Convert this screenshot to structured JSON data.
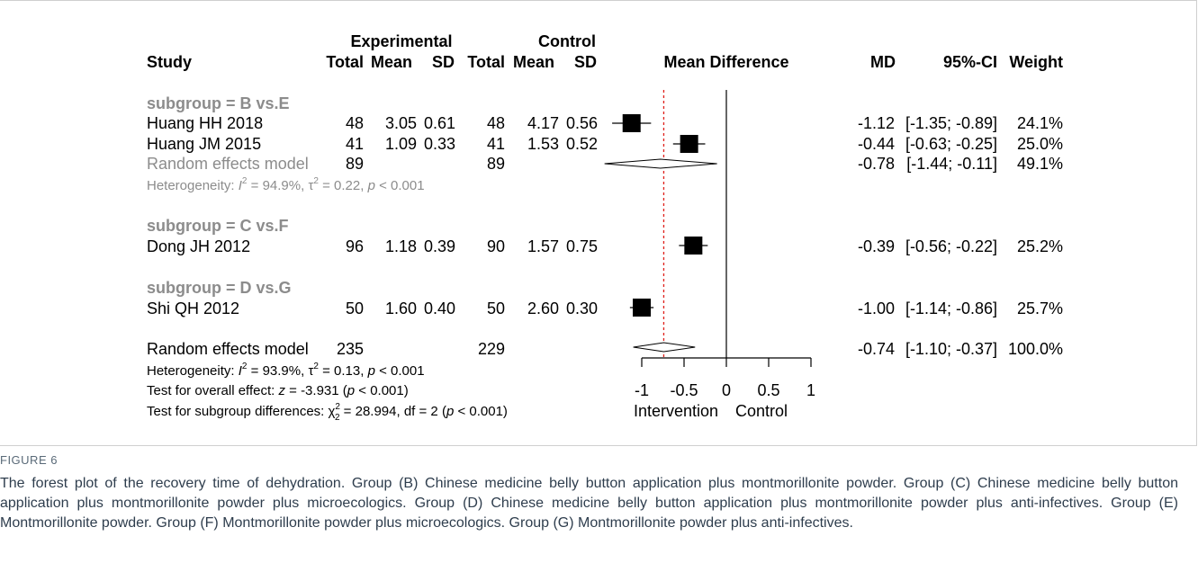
{
  "headers": {
    "study": "Study",
    "experimental": "Experimental",
    "control": "Control",
    "total": "Total",
    "mean": "Mean",
    "sd": "SD",
    "mean_difference": "Mean Difference",
    "md": "MD",
    "ci": "95%-CI",
    "weight": "Weight"
  },
  "axis": {
    "ticks": [
      -1,
      -0.5,
      0,
      0.5,
      1
    ],
    "tick_labels": [
      "-1",
      "-0.5",
      "0",
      "0.5",
      "1"
    ],
    "xlim": [
      -1,
      1
    ],
    "left_label": "Intervention",
    "right_label": "Control",
    "overall_reference": -0.74
  },
  "overall_text": {
    "model_label": "Random effects model",
    "total_e": "235",
    "total_c": "229",
    "md": "-0.74",
    "ci": "[-1.10; -0.37]",
    "weight": "100.0%",
    "heterogeneity": {
      "prefix": "Heterogeneity: ",
      "i2_value": " = 93.9%, ",
      "tau2_value": " = 0.13, ",
      "p_value": " < 0.001"
    },
    "overall_effect": {
      "prefix": "Test for overall effect: ",
      "z_value": " = -3.931 (",
      "p_value": " < 0.001)"
    },
    "subgroup_diff": {
      "prefix": "Test for subgroup differences: ",
      "chi_value": " = 28.994, df = 2 (",
      "p_value": " < 0.001)"
    }
  },
  "chart_data": {
    "type": "forest",
    "xlim": [
      -1,
      1
    ],
    "subgroups": [
      {
        "label": "subgroup = B vs.E",
        "studies": [
          {
            "study": "Huang HH 2018",
            "e_total": "48",
            "e_mean": "3.05",
            "e_sd": "0.61",
            "c_total": "48",
            "c_mean": "4.17",
            "c_sd": "0.56",
            "md": -1.12,
            "ci_low": -1.35,
            "ci_high": -0.89,
            "md_text": "-1.12",
            "ci_text": "[-1.35; -0.89]",
            "weight": "24.1%"
          },
          {
            "study": "Huang JM 2015",
            "e_total": "41",
            "e_mean": "1.09",
            "e_sd": "0.33",
            "c_total": "41",
            "c_mean": "1.53",
            "c_sd": "0.52",
            "md": -0.44,
            "ci_low": -0.63,
            "ci_high": -0.25,
            "md_text": "-0.44",
            "ci_text": "[-0.63; -0.25]",
            "weight": "25.0%"
          }
        ],
        "pooled": {
          "label": "Random effects model",
          "e_total": "89",
          "c_total": "89",
          "md": -0.78,
          "ci_low": -1.44,
          "ci_high": -0.11,
          "md_text": "-0.78",
          "ci_text": "[-1.44; -0.11]",
          "weight": "49.1%"
        },
        "heterogeneity": {
          "prefix": "Heterogeneity: ",
          "i2_value": " = 94.9%, ",
          "tau2_value": " = 0.22, ",
          "p_value": " < 0.001"
        }
      },
      {
        "label": "subgroup = C vs.F",
        "studies": [
          {
            "study": "Dong JH 2012",
            "e_total": "96",
            "e_mean": "1.18",
            "e_sd": "0.39",
            "c_total": "90",
            "c_mean": "1.57",
            "c_sd": "0.75",
            "md": -0.39,
            "ci_low": -0.56,
            "ci_high": -0.22,
            "md_text": "-0.39",
            "ci_text": "[-0.56; -0.22]",
            "weight": "25.2%"
          }
        ]
      },
      {
        "label": "subgroup = D vs.G",
        "studies": [
          {
            "study": "Shi QH 2012",
            "e_total": "50",
            "e_mean": "1.60",
            "e_sd": "0.40",
            "c_total": "50",
            "c_mean": "2.60",
            "c_sd": "0.30",
            "md": -1.0,
            "ci_low": -1.14,
            "ci_high": -0.86,
            "md_text": "-1.00",
            "ci_text": "[-1.14; -0.86]",
            "weight": "25.7%"
          }
        ]
      }
    ],
    "overall": {
      "md": -0.74,
      "ci_low": -1.1,
      "ci_high": -0.37
    }
  },
  "caption": {
    "label": "FIGURE 6",
    "text": "The forest plot of the recovery time of dehydration. Group (B) Chinese medicine belly button application plus montmorillonite powder. Group (C) Chinese medicine belly button application plus montmorillonite powder plus microecologics. Group (D) Chinese medicine belly button application plus montmorillonite powder plus anti-infectives. Group (E) Montmorillonite powder. Group (F) Montmorillonite powder plus microecologics. Group (G) Montmorillonite powder plus anti-infectives."
  }
}
